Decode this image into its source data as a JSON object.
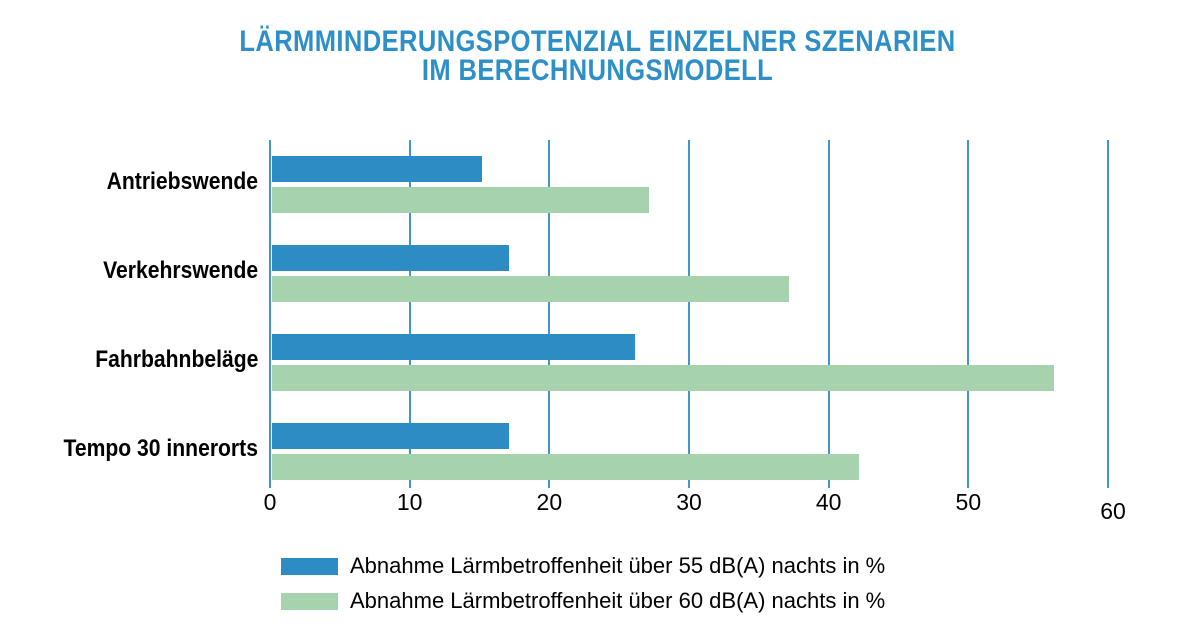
{
  "title": {
    "line1": "LÄRMMINDERUNGSPOTENZIAL EINZELNER SZENARIEN",
    "line2": "IM BERECHNUNGSMODELL"
  },
  "chart_data": {
    "type": "bar",
    "orientation": "horizontal",
    "title": "LÄRMMINDERUNGSPOTENZIAL EINZELNER SZENARIEN IM BERECHNUNGSMODELL",
    "categories": [
      "Antriebswende",
      "Verkehrswende",
      "Fahrbahnbeläge",
      "Tempo 30 innerorts"
    ],
    "series": [
      {
        "key": "55dB",
        "name": "Abnahme Lärmbetroffenheit über 55 dB(A) nachts in %",
        "color": "#2E8CC4",
        "values": [
          15,
          17,
          26,
          17
        ]
      },
      {
        "key": "60dB",
        "name": "Abnahme Lärmbetroffenheit über 60 dB(A) nachts in %",
        "color": "#A6D2AE",
        "values": [
          27,
          37,
          56,
          42
        ]
      }
    ],
    "xlim": [
      0,
      60
    ],
    "xticks": [
      0,
      10,
      20,
      30,
      40,
      50,
      60
    ],
    "grid": true,
    "legend_position": "bottom",
    "unit": "%"
  },
  "colors": {
    "bar_blue": "#2E8CC4",
    "bar_green": "#A6D2AE",
    "gridline": "#3F97CB",
    "title": "#2C8FC7",
    "text": "#000000",
    "background": "#FFFFFF"
  }
}
